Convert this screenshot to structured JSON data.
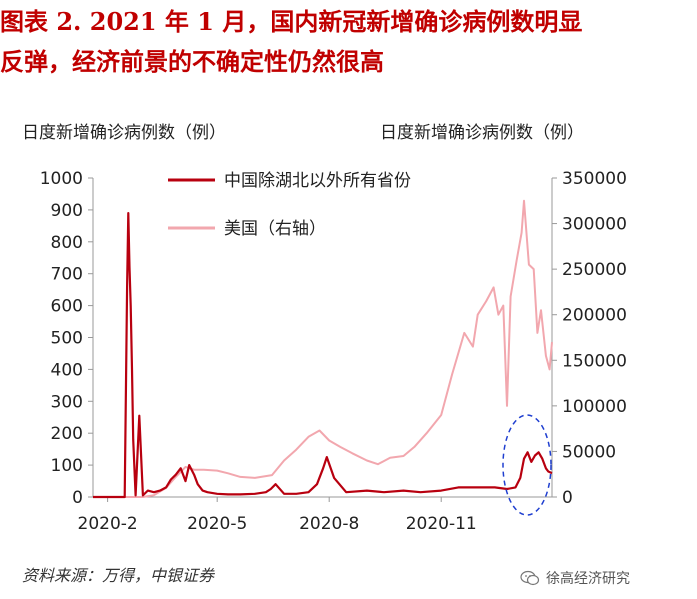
{
  "header": {
    "title_line1": "图表 2.  2021 年 1 月，国内新冠新增确诊病例数明显",
    "title_line2": "反弹，经济前景的不确定性仍然很高"
  },
  "axes": {
    "left_label": "日度新增确诊病例数（例）",
    "right_label": "日度新增确诊病例数（例）"
  },
  "source": "资料来源：万得，中银证券",
  "watermark": {
    "text": "徐高经济研究",
    "icon": "wechat-icon"
  },
  "colors": {
    "china": "#b8000f",
    "usa": "#f2a7ae",
    "title": "#c00000",
    "ellipse": "#1f3fd0"
  },
  "chart_data": {
    "type": "line",
    "title": "",
    "x_ticks": [
      "2020-2",
      "2020-5",
      "2020-8",
      "2020-11"
    ],
    "x_tick_dates": [
      "2020-02-01",
      "2020-05-01",
      "2020-08-01",
      "2020-11-01"
    ],
    "x_range": [
      "2020-01-20",
      "2021-01-31"
    ],
    "ylim_left": [
      0,
      1000
    ],
    "yticks_left": [
      0,
      100,
      200,
      300,
      400,
      500,
      600,
      700,
      800,
      900,
      1000
    ],
    "ylim_right": [
      0,
      350000
    ],
    "yticks_right": [
      0,
      50000,
      100000,
      150000,
      200000,
      250000,
      300000,
      350000
    ],
    "legend_position": "top",
    "annotation": "dashed ellipse around January 2021 rebound",
    "series": [
      {
        "name": "中国除湖北以外所有省份",
        "axis": "left",
        "x": [
          "2020-01-20",
          "2020-01-24",
          "2020-01-27",
          "2020-01-30",
          "2020-02-03",
          "2020-02-06",
          "2020-02-09",
          "2020-02-12",
          "2020-02-15",
          "2020-02-17",
          "2020-02-18",
          "2020-02-19",
          "2020-02-20",
          "2020-02-21",
          "2020-02-22",
          "2020-02-24",
          "2020-02-27",
          "2020-03-01",
          "2020-03-05",
          "2020-03-10",
          "2020-03-15",
          "2020-03-20",
          "2020-03-24",
          "2020-03-28",
          "2020-04-01",
          "2020-04-05",
          "2020-04-08",
          "2020-04-12",
          "2020-04-15",
          "2020-04-19",
          "2020-04-23",
          "2020-05-01",
          "2020-05-10",
          "2020-05-20",
          "2020-06-01",
          "2020-06-10",
          "2020-06-14",
          "2020-06-18",
          "2020-06-25",
          "2020-07-05",
          "2020-07-15",
          "2020-07-22",
          "2020-07-27",
          "2020-07-30",
          "2020-08-05",
          "2020-08-15",
          "2020-09-01",
          "2020-09-15",
          "2020-10-01",
          "2020-10-15",
          "2020-11-01",
          "2020-11-15",
          "2020-12-01",
          "2020-12-15",
          "2020-12-25",
          "2021-01-01",
          "2021-01-05",
          "2021-01-08",
          "2021-01-11",
          "2021-01-14",
          "2021-01-17",
          "2021-01-20",
          "2021-01-23",
          "2021-01-26",
          "2021-01-28",
          "2021-01-31"
        ],
        "values": [
          0,
          0,
          0,
          0,
          0,
          0,
          0,
          0,
          0,
          660,
          890,
          720,
          600,
          400,
          180,
          5,
          255,
          5,
          20,
          15,
          20,
          30,
          55,
          70,
          90,
          50,
          100,
          70,
          40,
          20,
          15,
          10,
          8,
          8,
          10,
          15,
          25,
          40,
          10,
          10,
          15,
          40,
          90,
          125,
          60,
          15,
          20,
          15,
          20,
          15,
          20,
          30,
          30,
          30,
          25,
          30,
          60,
          120,
          140,
          110,
          130,
          140,
          120,
          90,
          80,
          75
        ]
      },
      {
        "name": "美国（右轴）",
        "axis": "right",
        "x": [
          "2020-01-20",
          "2020-03-01",
          "2020-03-10",
          "2020-03-20",
          "2020-03-28",
          "2020-04-05",
          "2020-04-12",
          "2020-04-20",
          "2020-05-01",
          "2020-05-10",
          "2020-05-20",
          "2020-06-01",
          "2020-06-15",
          "2020-06-25",
          "2020-07-05",
          "2020-07-15",
          "2020-07-24",
          "2020-08-01",
          "2020-08-10",
          "2020-08-20",
          "2020-09-01",
          "2020-09-10",
          "2020-09-20",
          "2020-10-01",
          "2020-10-10",
          "2020-10-20",
          "2020-11-01",
          "2020-11-10",
          "2020-11-20",
          "2020-11-27",
          "2020-12-01",
          "2020-12-08",
          "2020-12-14",
          "2020-12-18",
          "2020-12-22",
          "2020-12-25",
          "2020-12-28",
          "2021-01-02",
          "2021-01-06",
          "2021-01-08",
          "2021-01-12",
          "2021-01-16",
          "2021-01-19",
          "2021-01-22",
          "2021-01-26",
          "2021-01-29",
          "2021-01-31"
        ],
        "values": [
          0,
          0,
          2000,
          10000,
          22000,
          33000,
          30000,
          30000,
          29000,
          26000,
          22000,
          21000,
          24000,
          40000,
          52000,
          66000,
          73000,
          62000,
          55000,
          48000,
          40000,
          36000,
          43000,
          45000,
          55000,
          70000,
          90000,
          135000,
          180000,
          165000,
          200000,
          215000,
          230000,
          200000,
          210000,
          100000,
          220000,
          260000,
          290000,
          325000,
          255000,
          250000,
          180000,
          205000,
          155000,
          140000,
          170000
        ]
      }
    ]
  }
}
